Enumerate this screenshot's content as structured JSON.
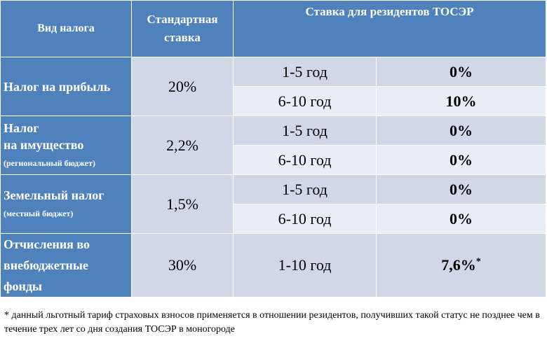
{
  "header": {
    "col1": "Вид налога",
    "col2": "Стандартная ставка",
    "col3": "Ставка для резидентов ТОСЭР"
  },
  "taxes": [
    {
      "name": "Налог на прибыль",
      "note": "",
      "standard": "20%",
      "periods": [
        {
          "period": "1-5 год",
          "rate": "0%"
        },
        {
          "period": "6-10 год",
          "rate": "10%"
        }
      ]
    },
    {
      "name_line1": "Налог",
      "name_line2": "на имущество",
      "note": "(региональный бюджет)",
      "standard": "2,2%",
      "periods": [
        {
          "period": "1-5 год",
          "rate": "0%"
        },
        {
          "period": "6-10 год",
          "rate": "0%"
        }
      ]
    },
    {
      "name": "Земельный налог",
      "note": "(местный бюджет)",
      "standard": "1,5%",
      "periods": [
        {
          "period": "1-5 год",
          "rate": "0%"
        },
        {
          "period": "6-10 год",
          "rate": "0%"
        }
      ]
    },
    {
      "name_line1": "Отчисления во",
      "name_line2": "внебюджетные",
      "name_line3": "фонды",
      "standard": "30%",
      "periods": [
        {
          "period": "1-10 год",
          "rate": "7,6%",
          "mark": "*"
        }
      ]
    }
  ],
  "footnote": "* данный льготный тариф страховых взносов применяется в отношении резидентов, получивших такой статус не позднее чем в течение трех лет со дня создания ТОСЭР в моногороде",
  "colors": {
    "header_blue": "#4f81bd",
    "cell_light": "#d0d8e8",
    "cell_lighter": "#e9edf4"
  }
}
